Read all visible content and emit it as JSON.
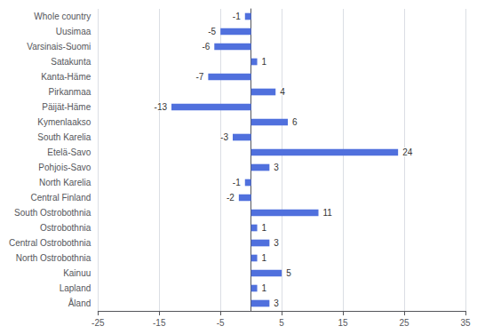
{
  "chart_data": {
    "type": "bar",
    "orientation": "horizontal",
    "categories": [
      "Åland",
      "Lapland",
      "Kainuu",
      "North Ostrobothnia",
      "Central Ostrobothnia",
      "Ostrobothnia",
      "South Ostrobothnia",
      "Central Finland",
      "North Karelia",
      "Pohjois-Savo",
      "Etelä-Savo",
      "South Karelia",
      "Kymenlaakso",
      "Päijät-Häme",
      "Pirkanmaa",
      "Kanta-Häme",
      "Satakunta",
      "Varsinais-Suomi",
      "Uusimaa",
      "Whole country"
    ],
    "values": [
      3,
      1,
      5,
      1,
      3,
      1,
      11,
      -2,
      -1,
      3,
      24,
      -3,
      6,
      -13,
      4,
      -7,
      1,
      -6,
      -5,
      -1
    ],
    "xlim": [
      -25,
      35
    ],
    "xticks": [
      -25,
      -15,
      -5,
      5,
      15,
      25,
      35
    ],
    "grid": true,
    "data_labels": true
  }
}
